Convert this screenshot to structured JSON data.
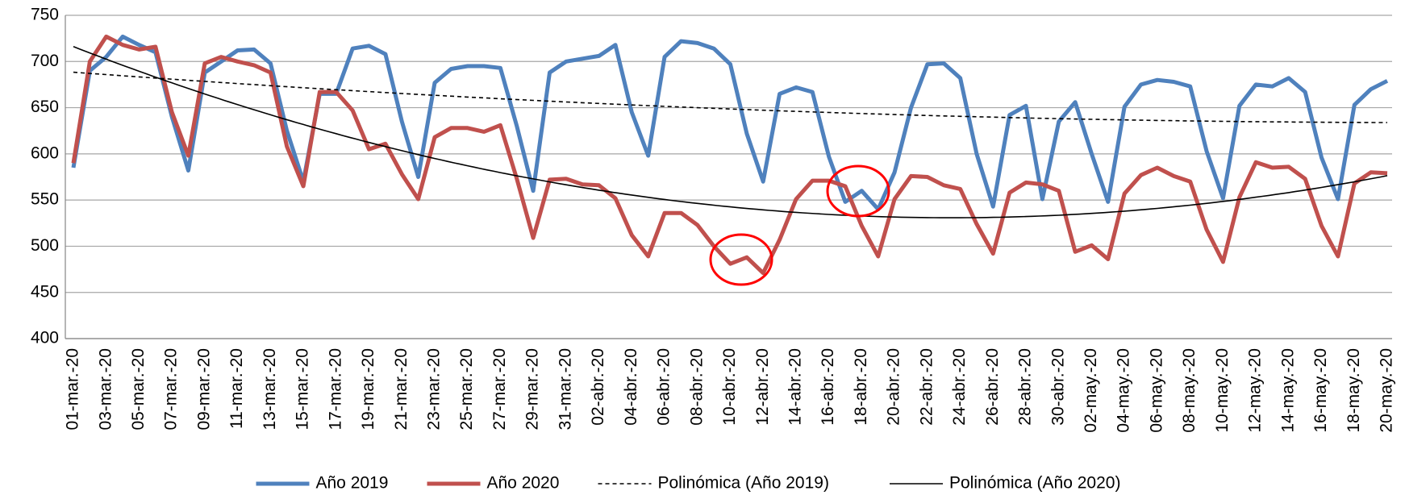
{
  "chart_data": {
    "type": "line",
    "categories": [
      "01-mar.-20",
      null,
      "03-mar.-20",
      null,
      "05-mar.-20",
      null,
      "07-mar.-20",
      null,
      "09-mar.-20",
      null,
      "11-mar.-20",
      null,
      "13-mar.-20",
      null,
      "15-mar.-20",
      null,
      "17-mar.-20",
      null,
      "19-mar.-20",
      null,
      "21-mar.-20",
      null,
      "23-mar.-20",
      null,
      "25-mar.-20",
      null,
      "27-mar.-20",
      null,
      "29-mar.-20",
      null,
      "31-mar.-20",
      null,
      "02-abr.-20",
      null,
      "04-abr.-20",
      null,
      "06-abr.-20",
      null,
      "08-abr.-20",
      null,
      "10-abr.-20",
      null,
      "12-abr.-20",
      null,
      "14-abr.-20",
      null,
      "16-abr.-20",
      null,
      "18-abr.-20",
      null,
      "20-abr.-20",
      null,
      "22-abr.-20",
      null,
      "24-abr.-20",
      null,
      "26-abr.-20",
      null,
      "28-abr.-20",
      null,
      "30-abr.-20",
      null,
      "02-may.-20",
      null,
      "04-may.-20",
      null,
      "06-may.-20",
      null,
      "08-may.-20",
      null,
      "10-may.-20",
      null,
      "12-may.-20",
      null,
      "14-may.-20",
      null,
      "16-may.-20",
      null,
      "18-may.-20",
      null,
      "20-may.-20"
    ],
    "series": [
      {
        "name": "Año 2019",
        "color": "#4f81bd",
        "values": [
          585,
          690,
          705,
          727,
          718,
          710,
          640,
          582,
          688,
          700,
          712,
          713,
          698,
          625,
          570,
          665,
          665,
          714,
          717,
          708,
          635,
          575,
          677,
          692,
          695,
          695,
          693,
          630,
          560,
          688,
          700,
          703,
          706,
          718,
          645,
          598,
          705,
          722,
          720,
          714,
          697,
          622,
          570,
          665,
          672,
          667,
          597,
          548,
          560,
          540,
          580,
          650,
          697,
          698,
          682,
          600,
          543,
          642,
          652,
          551,
          635,
          656,
          600,
          548,
          651,
          675,
          680,
          678,
          673,
          603,
          552,
          652,
          675,
          673,
          682,
          667,
          596,
          551,
          653,
          670,
          679
        ]
      },
      {
        "name": "Año 2020",
        "color": "#c0504d",
        "values": [
          590,
          700,
          727,
          718,
          713,
          716,
          645,
          598,
          698,
          705,
          700,
          696,
          688,
          608,
          565,
          667,
          667,
          647,
          605,
          611,
          578,
          551,
          618,
          628,
          628,
          624,
          631,
          573,
          509,
          572,
          573,
          567,
          566,
          552,
          512,
          489,
          536,
          536,
          523,
          500,
          481,
          488,
          471,
          507,
          551,
          571,
          571,
          565,
          522,
          489,
          551,
          576,
          575,
          566,
          562,
          524,
          492,
          558,
          569,
          567,
          560,
          494,
          501,
          486,
          557,
          577,
          585,
          576,
          570,
          518,
          483,
          553,
          591,
          585,
          586,
          573,
          522,
          489,
          568,
          580,
          579
        ]
      },
      {
        "name": "Polinómica (Año 2019)",
        "color": "#000000",
        "trendline_of": 0,
        "order": 2,
        "dashed": true
      },
      {
        "name": "Polinómica (Año 2020)",
        "color": "#000000",
        "trendline_of": 1,
        "order": 2,
        "dashed": false
      }
    ],
    "ylim": [
      400,
      750
    ],
    "yticks": [
      400,
      450,
      500,
      550,
      600,
      650,
      700,
      750
    ],
    "grid": true,
    "legend": "bottom"
  }
}
